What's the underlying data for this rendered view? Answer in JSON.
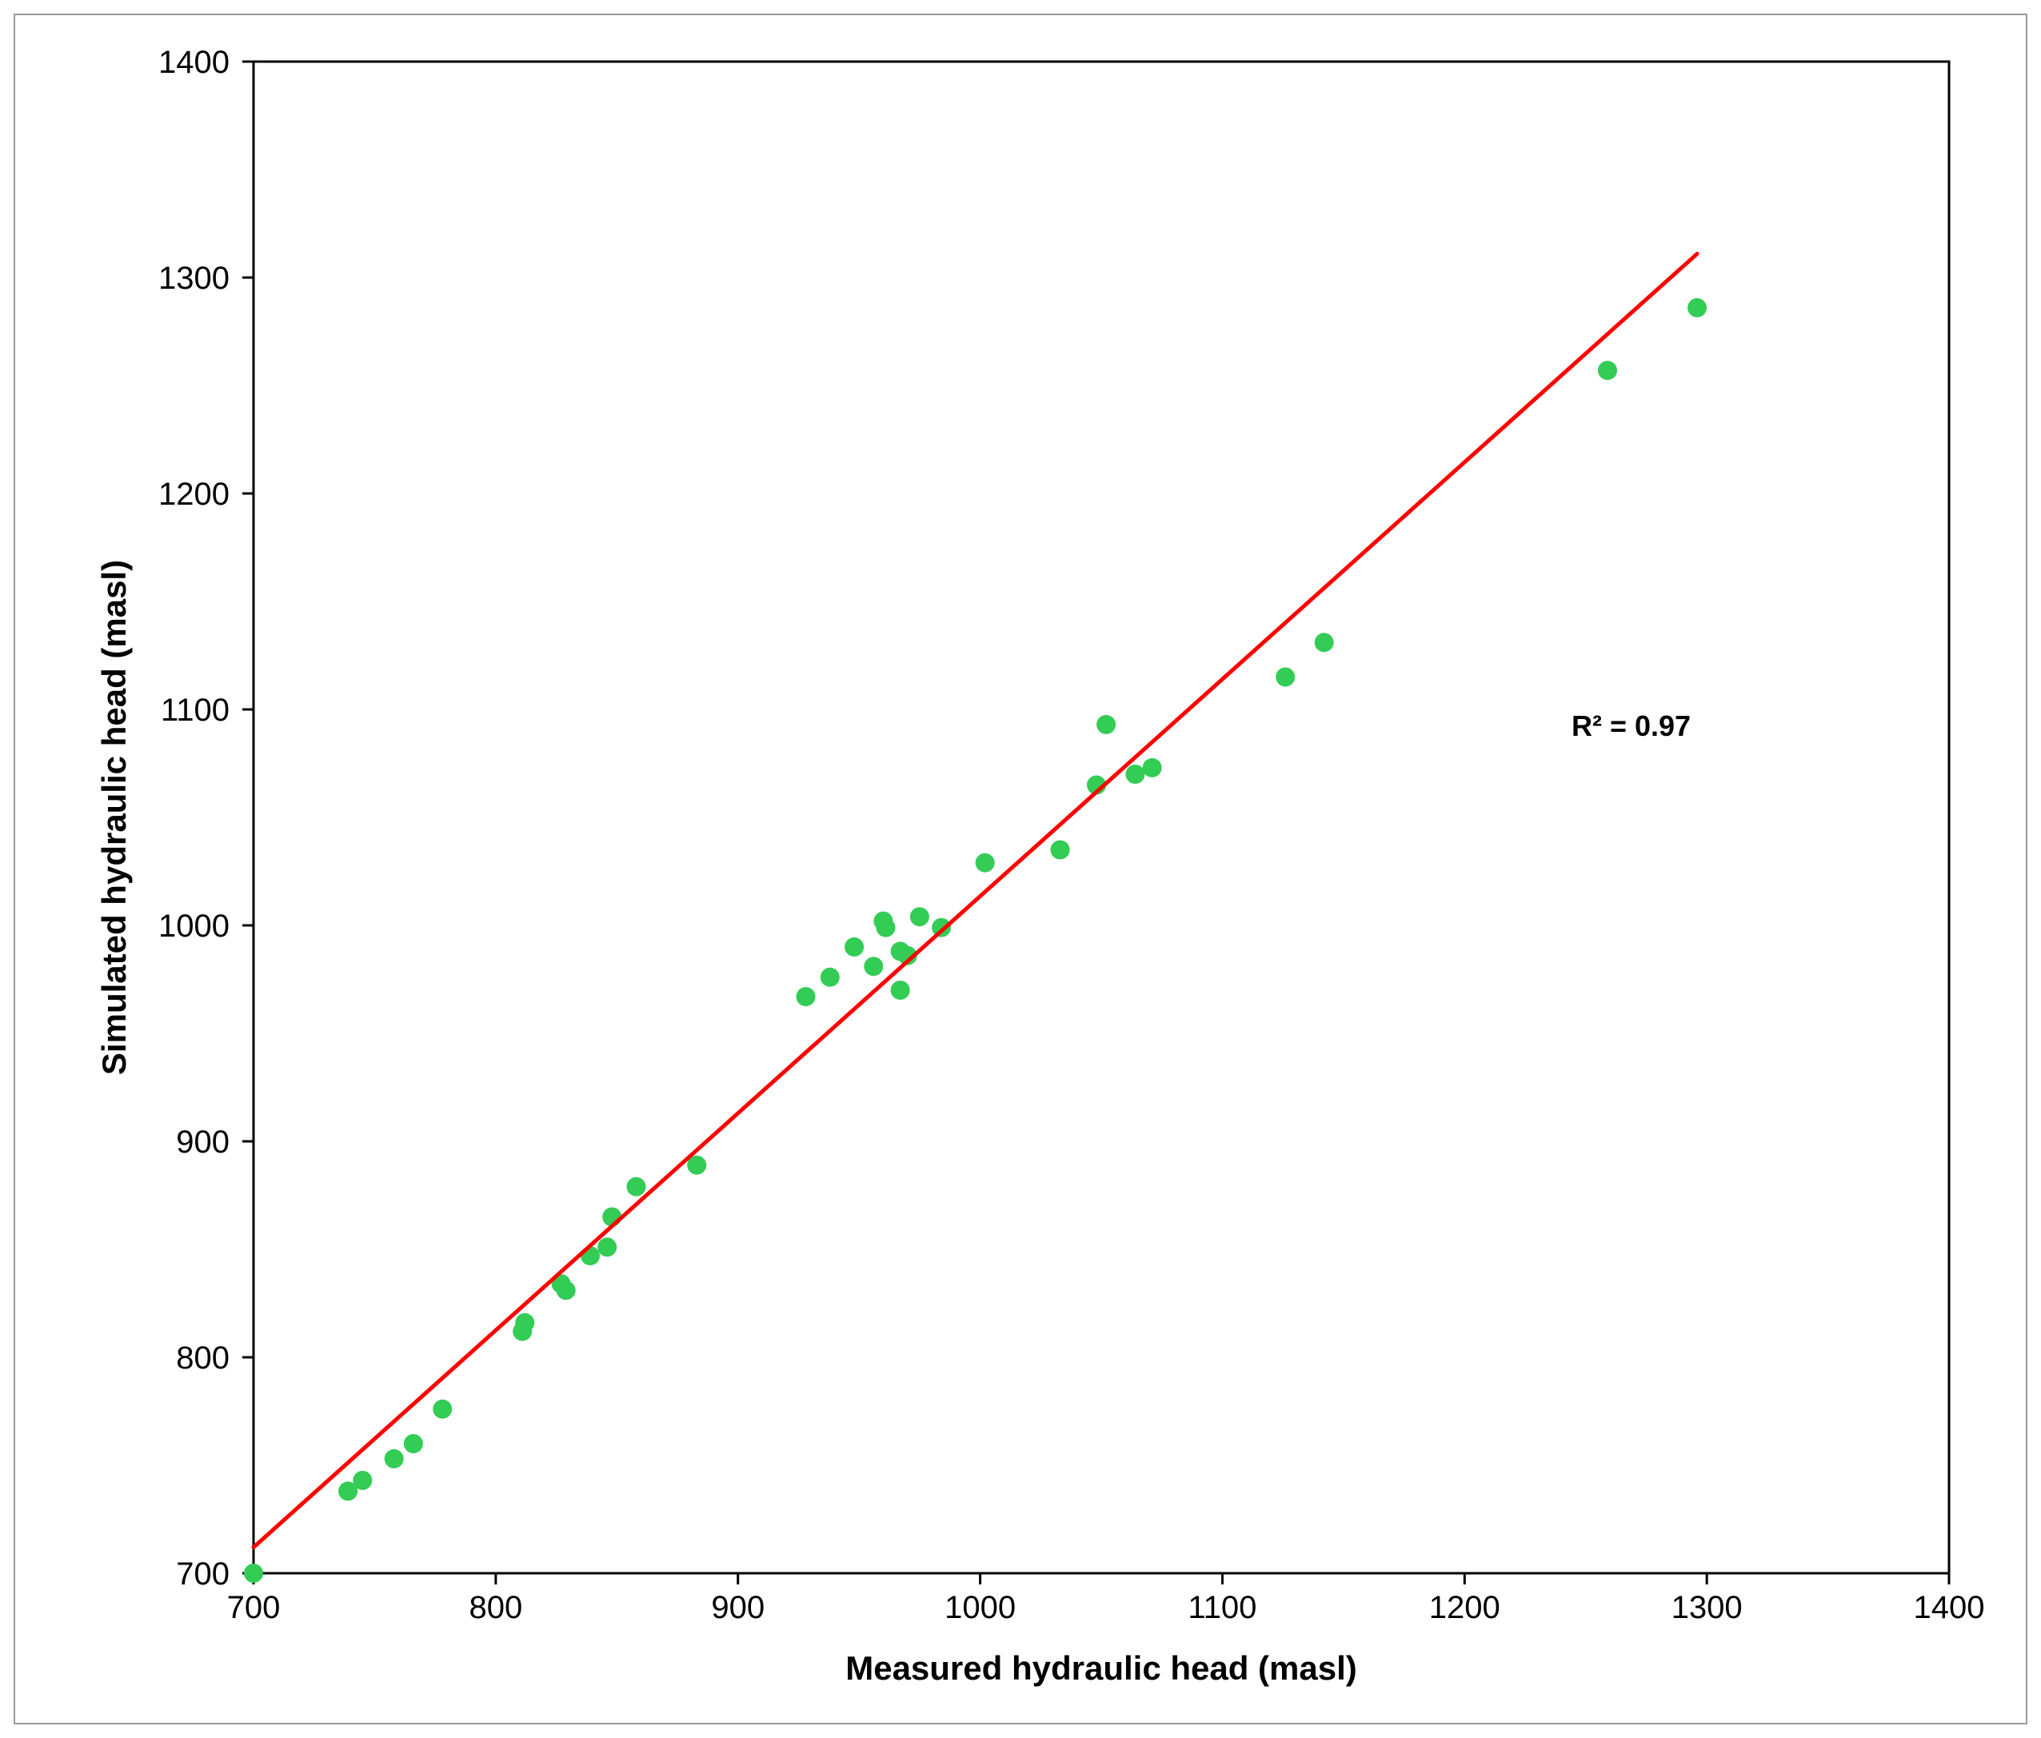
{
  "chart_data": {
    "type": "scatter",
    "title": "",
    "xlabel": "Measured hydraulic head (masl)",
    "ylabel": "Simulated hydraulic head (masl)",
    "xlim": [
      700,
      1400
    ],
    "ylim": [
      700,
      1400
    ],
    "xticks": [
      "700",
      "800",
      "900",
      "1000",
      "1100",
      "1200",
      "1300",
      "1400"
    ],
    "yticks": [
      "700",
      "800",
      "900",
      "1000",
      "1100",
      "1200",
      "1300",
      "1400"
    ],
    "grid": false,
    "legend": "none",
    "point_color": "#33cc55",
    "line_color": "#ff0000",
    "annotation": "R² = 0.97",
    "series": [
      {
        "points": [
          [
            700,
            700
          ],
          [
            739,
            738
          ],
          [
            745,
            743
          ],
          [
            758,
            753
          ],
          [
            766,
            760
          ],
          [
            778,
            776
          ],
          [
            811,
            812
          ],
          [
            812,
            816
          ],
          [
            827,
            834
          ],
          [
            829,
            831
          ],
          [
            839,
            847
          ],
          [
            846,
            851
          ],
          [
            848,
            865
          ],
          [
            858,
            879
          ],
          [
            883,
            889
          ],
          [
            928,
            967
          ],
          [
            938,
            976
          ],
          [
            948,
            990
          ],
          [
            956,
            981
          ],
          [
            960,
            1002
          ],
          [
            961,
            999
          ],
          [
            967,
            970
          ],
          [
            967,
            988
          ],
          [
            970,
            986
          ],
          [
            975,
            1004
          ],
          [
            984,
            999
          ],
          [
            1002,
            1029
          ],
          [
            1033,
            1035
          ],
          [
            1048,
            1065
          ],
          [
            1052,
            1093
          ],
          [
            1064,
            1070
          ],
          [
            1071,
            1073
          ],
          [
            1126,
            1115
          ],
          [
            1142,
            1131
          ],
          [
            1259,
            1257
          ],
          [
            1296,
            1286
          ]
        ]
      }
    ],
    "trendline": {
      "x": [
        700,
        1296
      ],
      "y": [
        712,
        1311
      ]
    }
  }
}
